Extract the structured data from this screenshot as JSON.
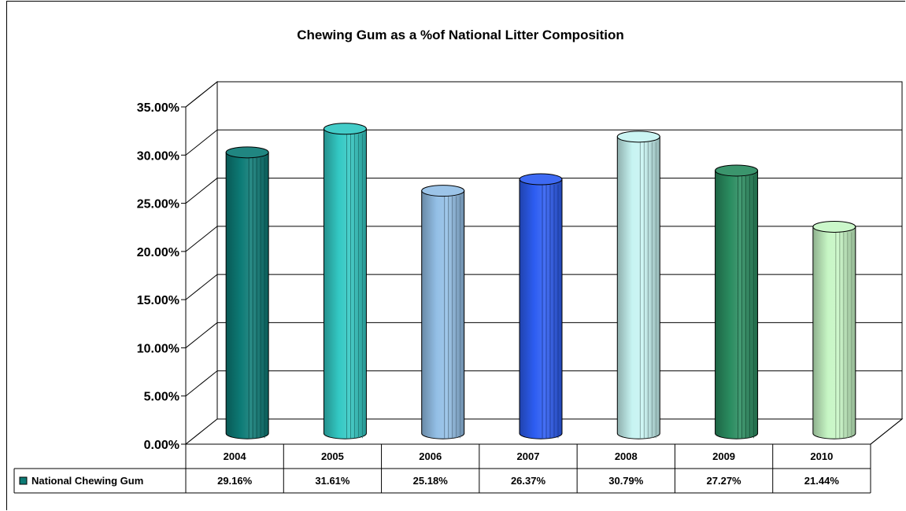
{
  "chart_data": {
    "type": "bar",
    "title": "Chewing Gum as a %of National Litter Composition",
    "xlabel": "",
    "ylabel": "",
    "categories": [
      "2004",
      "2005",
      "2006",
      "2007",
      "2008",
      "2009",
      "2010"
    ],
    "series": [
      {
        "name": "National Chewing Gum",
        "values": [
          29.16,
          31.61,
          25.18,
          26.37,
          30.79,
          27.27,
          21.44
        ],
        "labels": [
          "29.16%",
          "31.61%",
          "25.18%",
          "26.37%",
          "30.79%",
          "27.27%",
          "21.44%"
        ]
      }
    ],
    "ylim": [
      0,
      35
    ],
    "y_ticks": [
      "0.00%",
      "5.00%",
      "10.00%",
      "15.00%",
      "20.00%",
      "25.00%",
      "30.00%",
      "35.00%"
    ],
    "bar_colors": [
      "#0d7b76",
      "#33c8c3",
      "#93bfe6",
      "#2d5df2",
      "#c7f4f2",
      "#2a8c60",
      "#c7f6c5"
    ],
    "legend_color": "#0d7b76",
    "grid": true,
    "data_table": true
  }
}
